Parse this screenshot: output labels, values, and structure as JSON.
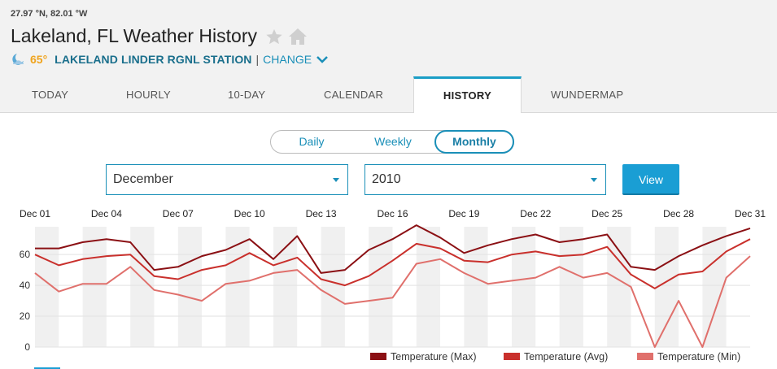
{
  "header": {
    "coords": "27.97 °N, 82.01 °W",
    "title": "Lakeland, FL Weather History",
    "temperature": "65°",
    "station": "LAKELAND LINDER RGNL STATION",
    "separator": "|",
    "change": "CHANGE",
    "icons": [
      "star-icon",
      "home-icon",
      "moon-icon",
      "chevron-down-icon"
    ]
  },
  "tabs": [
    {
      "label": "TODAY"
    },
    {
      "label": "HOURLY"
    },
    {
      "label": "10-DAY"
    },
    {
      "label": "CALENDAR"
    },
    {
      "label": "HISTORY",
      "active": true
    },
    {
      "label": "WUNDERMAP"
    }
  ],
  "toggle": {
    "options": [
      "Daily",
      "Weekly",
      "Monthly"
    ],
    "selected": "Monthly"
  },
  "filters": {
    "month": "December",
    "year": "2010",
    "view_label": "View"
  },
  "colors": {
    "accent": "#1a9ed4",
    "max": "#8b1014",
    "avg": "#c9302c",
    "min": "#e0706c"
  },
  "chart_data": {
    "type": "line",
    "x": [
      "Dec 01",
      "Dec 02",
      "Dec 03",
      "Dec 04",
      "Dec 05",
      "Dec 06",
      "Dec 07",
      "Dec 08",
      "Dec 09",
      "Dec 10",
      "Dec 11",
      "Dec 12",
      "Dec 13",
      "Dec 14",
      "Dec 15",
      "Dec 16",
      "Dec 17",
      "Dec 18",
      "Dec 19",
      "Dec 20",
      "Dec 21",
      "Dec 22",
      "Dec 23",
      "Dec 24",
      "Dec 25",
      "Dec 26",
      "Dec 27",
      "Dec 28",
      "Dec 29",
      "Dec 30",
      "Dec 31"
    ],
    "tick_labels": [
      "Dec 01",
      "Dec 04",
      "Dec 07",
      "Dec 10",
      "Dec 13",
      "Dec 16",
      "Dec 19",
      "Dec 22",
      "Dec 25",
      "Dec 28",
      "Dec 31"
    ],
    "yticks": [
      0,
      20,
      40,
      60
    ],
    "ylim": [
      0,
      78
    ],
    "series": [
      {
        "name": "Temperature (Max)",
        "color": "#8b1014",
        "values": [
          64,
          64,
          68,
          70,
          68,
          50,
          52,
          59,
          63,
          70,
          57,
          72,
          48,
          50,
          63,
          70,
          79,
          71,
          61,
          66,
          70,
          73,
          68,
          70,
          73,
          52,
          50,
          59,
          66,
          72,
          77
        ]
      },
      {
        "name": "Temperature (Avg)",
        "color": "#c9302c",
        "values": [
          60,
          53,
          57,
          59,
          60,
          46,
          44,
          50,
          53,
          61,
          53,
          58,
          44,
          40,
          46,
          56,
          67,
          64,
          56,
          55,
          60,
          62,
          59,
          60,
          65,
          47,
          38,
          47,
          49,
          62,
          70
        ]
      },
      {
        "name": "Temperature (Min)",
        "color": "#e0706c",
        "values": [
          48,
          36,
          41,
          41,
          52,
          37,
          34,
          30,
          41,
          43,
          48,
          50,
          37,
          28,
          30,
          32,
          54,
          57,
          48,
          41,
          43,
          45,
          52,
          45,
          48,
          39,
          0,
          30,
          0,
          45,
          59
        ]
      }
    ],
    "grid": "alternating-bands",
    "legend": "bottom-right"
  }
}
